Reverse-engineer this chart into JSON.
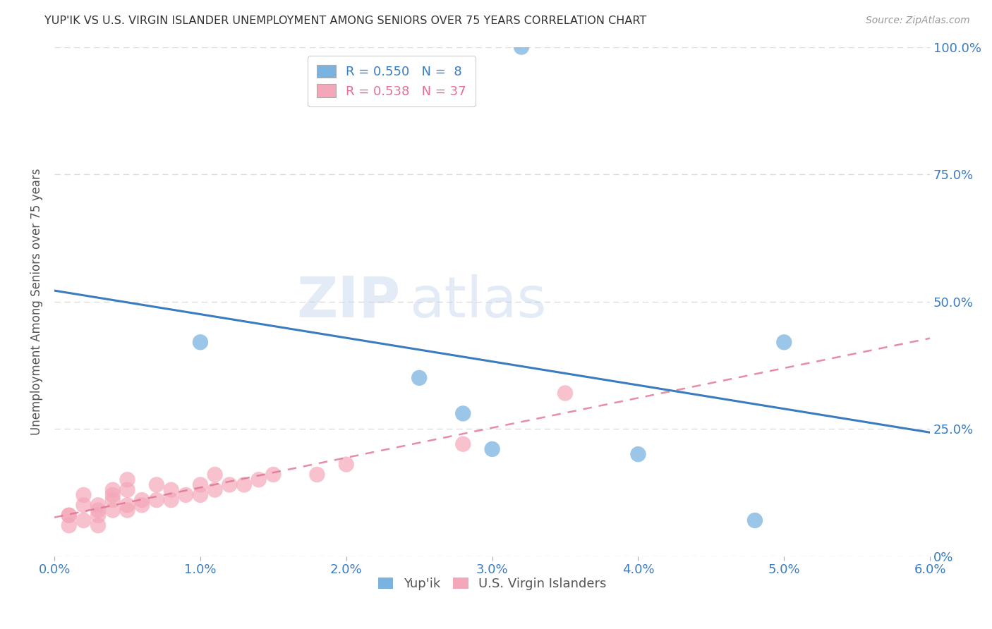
{
  "title": "YUP'IK VS U.S. VIRGIN ISLANDER UNEMPLOYMENT AMONG SENIORS OVER 75 YEARS CORRELATION CHART",
  "source": "Source: ZipAtlas.com",
  "xlabel_ticks": [
    "0.0%",
    "1.0%",
    "2.0%",
    "3.0%",
    "4.0%",
    "5.0%",
    "6.0%"
  ],
  "ylabel_ticks": [
    "0%",
    "25.0%",
    "50.0%",
    "75.0%",
    "100.0%"
  ],
  "ylabel_label": "Unemployment Among Seniors over 75 years",
  "xmin": 0.0,
  "xmax": 0.06,
  "ymin": 0.0,
  "ymax": 1.0,
  "yupik_x": [
    0.032,
    0.01,
    0.025,
    0.028,
    0.03,
    0.05,
    0.048,
    0.04
  ],
  "yupik_y": [
    1.0,
    0.42,
    0.35,
    0.28,
    0.21,
    0.42,
    0.07,
    0.2
  ],
  "virgin_x": [
    0.001,
    0.001,
    0.001,
    0.002,
    0.002,
    0.002,
    0.003,
    0.003,
    0.003,
    0.003,
    0.004,
    0.004,
    0.004,
    0.004,
    0.005,
    0.005,
    0.005,
    0.005,
    0.006,
    0.006,
    0.007,
    0.007,
    0.008,
    0.008,
    0.009,
    0.01,
    0.01,
    0.011,
    0.011,
    0.012,
    0.013,
    0.014,
    0.015,
    0.018,
    0.02,
    0.028,
    0.035
  ],
  "virgin_y": [
    0.06,
    0.08,
    0.08,
    0.07,
    0.1,
    0.12,
    0.06,
    0.08,
    0.09,
    0.1,
    0.09,
    0.11,
    0.12,
    0.13,
    0.09,
    0.1,
    0.13,
    0.15,
    0.1,
    0.11,
    0.11,
    0.14,
    0.11,
    0.13,
    0.12,
    0.12,
    0.14,
    0.13,
    0.16,
    0.14,
    0.14,
    0.15,
    0.16,
    0.16,
    0.18,
    0.22,
    0.32
  ],
  "yupik_color": "#7ab3e0",
  "virgin_color": "#f4a7b9",
  "yupik_line_color": "#3a7cc0",
  "virgin_line_color": "#e07090",
  "yupik_R": 0.55,
  "yupik_N": 8,
  "virgin_R": 0.538,
  "virgin_N": 37,
  "watermark_zip": "ZIP",
  "watermark_atlas": "atlas",
  "legend_label_yupik": "Yup'ik",
  "legend_label_virgin": "U.S. Virgin Islanders",
  "background_color": "#ffffff",
  "grid_color": "#dddddd",
  "title_color": "#333333",
  "axis_label_color": "#555555",
  "tick_color": "#3a7cc0"
}
